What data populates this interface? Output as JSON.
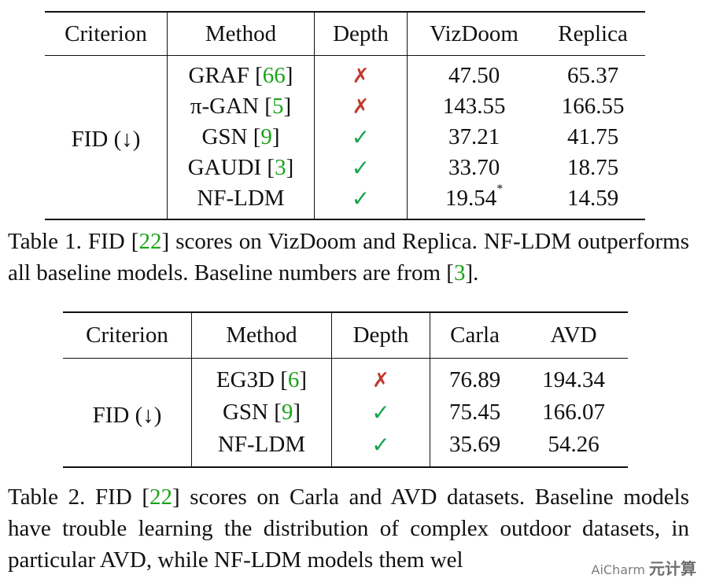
{
  "table1": {
    "headers": [
      "Criterion",
      "Method",
      "Depth",
      "VizDoom",
      "Replica"
    ],
    "criterion": "FID (↓)",
    "rows": [
      {
        "method": "GRAF",
        "ref": "66",
        "depth": "✗",
        "v1": "47.50",
        "v2": "65.37"
      },
      {
        "method": "π-GAN",
        "ref": "5",
        "depth": "✗",
        "v1": "143.55",
        "v2": "166.55"
      },
      {
        "method": "GSN",
        "ref": "9",
        "depth": "✓",
        "v1": "37.21",
        "v2": "41.75"
      },
      {
        "method": "GAUDI",
        "ref": "3",
        "depth": "✓",
        "v1": "33.70",
        "v2": "18.75"
      },
      {
        "method": "NF-LDM",
        "ref": "",
        "depth": "✓",
        "v1": "19.54",
        "v1_mark": "*",
        "v2": "14.59"
      }
    ]
  },
  "caption1": {
    "a": "Table 1.  FID [",
    "ref1": "22",
    "b": "] scores on VizDoom and Replica.  NF-LDM outperforms all baseline models. Baseline numbers are from [",
    "ref2": "3",
    "c": "]."
  },
  "table2": {
    "headers": [
      "Criterion",
      "Method",
      "Depth",
      "Carla",
      "AVD"
    ],
    "criterion": "FID (↓)",
    "rows": [
      {
        "method": "EG3D",
        "ref": "6",
        "depth": "✗",
        "v1": "76.89",
        "v2": "194.34"
      },
      {
        "method": "GSN",
        "ref": "9",
        "depth": "✓",
        "v1": "75.45",
        "v2": "166.07"
      },
      {
        "method": "NF-LDM",
        "ref": "",
        "depth": "✓",
        "v1": "35.69",
        "v2": "54.26"
      }
    ]
  },
  "caption2": {
    "a": "Table 2.  FID [",
    "ref1": "22",
    "b": "] scores on Carla and AVD datasets.  Baseline models have trouble learning the distribution of complex outdoor datasets, in particular AVD, while NF-LDM models them wel"
  },
  "watermark": {
    "line1": "AiCharm",
    "line2": "元计算"
  },
  "colors": {
    "ref": "#1aa31a",
    "cross": "#c0392b",
    "check": "#16a34a"
  }
}
